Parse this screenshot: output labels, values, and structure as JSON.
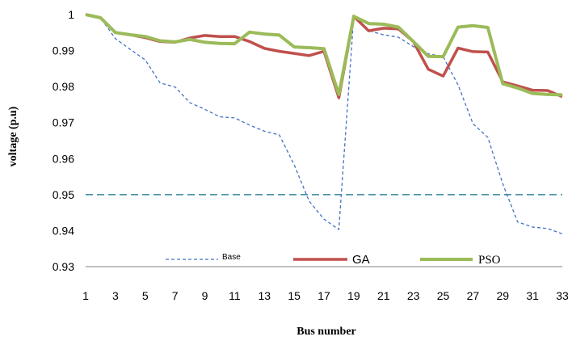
{
  "chart_data": {
    "type": "line",
    "title": "",
    "xlabel": "Bus number",
    "ylabel": "voltage (p.u)",
    "xlim": [
      1,
      33
    ],
    "ylim": [
      0.93,
      1.0
    ],
    "x_ticks": [
      1,
      3,
      5,
      7,
      9,
      11,
      13,
      15,
      17,
      19,
      21,
      23,
      25,
      27,
      29,
      31,
      33
    ],
    "y_ticks": [
      0.93,
      0.94,
      0.95,
      0.96,
      0.97,
      0.98,
      0.99,
      1
    ],
    "x": [
      1,
      2,
      3,
      4,
      5,
      6,
      7,
      8,
      9,
      10,
      11,
      12,
      13,
      14,
      15,
      16,
      17,
      18,
      19,
      20,
      21,
      22,
      23,
      24,
      25,
      26,
      27,
      28,
      29,
      30,
      31,
      32,
      33
    ],
    "series": [
      {
        "name": "Base",
        "color": "#4472c4",
        "style": "dashed",
        "values": [
          1.0,
          0.9991,
          0.9933,
          0.9903,
          0.9874,
          0.981,
          0.9799,
          0.9755,
          0.9737,
          0.9716,
          0.9713,
          0.9693,
          0.9676,
          0.9666,
          0.9583,
          0.9482,
          0.9432,
          0.9403,
          0.9996,
          0.9955,
          0.9944,
          0.9937,
          0.9911,
          0.9891,
          0.9883,
          0.9805,
          0.9697,
          0.9659,
          0.953,
          0.9424,
          0.941,
          0.9406,
          0.9391
        ]
      },
      {
        "name": "GA",
        "color": "#c0504d",
        "style": "solid",
        "values": [
          1.0,
          0.9991,
          0.995,
          0.9944,
          0.9936,
          0.9925,
          0.9923,
          0.9935,
          0.9942,
          0.9939,
          0.9939,
          0.9925,
          0.9906,
          0.9898,
          0.9892,
          0.9886,
          0.9898,
          0.9769,
          0.9995,
          0.9955,
          0.9962,
          0.996,
          0.9925,
          0.9848,
          0.9829,
          0.9907,
          0.9897,
          0.9896,
          0.9813,
          0.9802,
          0.979,
          0.9789,
          0.9772
        ]
      },
      {
        "name": "PSO",
        "color": "#9bbb59",
        "style": "solid",
        "values": [
          1.0,
          0.9991,
          0.995,
          0.9944,
          0.9939,
          0.9927,
          0.9924,
          0.9931,
          0.9923,
          0.992,
          0.9919,
          0.9951,
          0.9946,
          0.9943,
          0.991,
          0.9908,
          0.9905,
          0.9778,
          0.9995,
          0.9975,
          0.9973,
          0.9965,
          0.9925,
          0.9884,
          0.9883,
          0.9965,
          0.9969,
          0.9964,
          0.9808,
          0.9796,
          0.9781,
          0.9778,
          0.9777
        ]
      }
    ],
    "reference_line": {
      "value": 0.95,
      "color": "#31859c",
      "style": "dashed"
    },
    "legend": {
      "placement": "bottom-inside"
    },
    "grid": false
  }
}
